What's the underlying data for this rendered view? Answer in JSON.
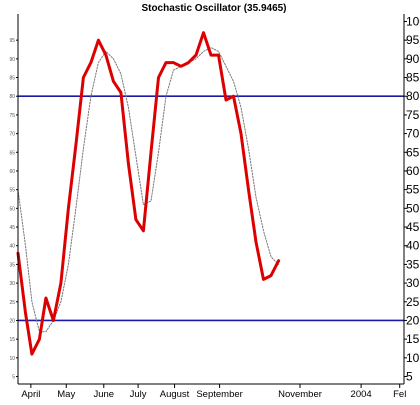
{
  "colors": {
    "main_line": "#dd0000",
    "signal_line": "#777777",
    "reference_lines": "#1a1aa8",
    "axes": "#000000"
  },
  "chart_data": {
    "type": "line",
    "title": "Stochastic Oscillator (35.9465)",
    "xlabel": "",
    "ylabel": "",
    "ylim": [
      3,
      102
    ],
    "grid": false,
    "y_ticks_right": [
      5,
      10,
      15,
      20,
      25,
      30,
      35,
      40,
      45,
      50,
      55,
      60,
      65,
      70,
      75,
      80,
      85,
      90,
      95,
      100
    ],
    "y_ticks_left": [
      5,
      10,
      15,
      20,
      25,
      30,
      35,
      40,
      45,
      50,
      55,
      60,
      65,
      70,
      75,
      80,
      85,
      90,
      95
    ],
    "x_tick_labels": [
      "April",
      "May",
      "June",
      "July",
      "August",
      "September",
      "November",
      "2004",
      "Fel"
    ],
    "x_tick_positions": [
      1.2,
      4.5,
      8.0,
      11.2,
      14.6,
      18.8,
      26.3,
      32.0,
      35.6
    ],
    "x_range": [
      0,
      36
    ],
    "reference_lines": [
      80,
      20
    ],
    "series": [
      {
        "style": "main",
        "points": [
          [
            0.0,
            38
          ],
          [
            0.7,
            22
          ],
          [
            1.3,
            11
          ],
          [
            2.0,
            15
          ],
          [
            2.6,
            26
          ],
          [
            3.3,
            20
          ],
          [
            4.0,
            30
          ],
          [
            4.7,
            50
          ],
          [
            5.4,
            67
          ],
          [
            6.1,
            85
          ],
          [
            6.8,
            89
          ],
          [
            7.5,
            95
          ],
          [
            8.2,
            91
          ],
          [
            8.9,
            84
          ],
          [
            9.6,
            81
          ],
          [
            10.3,
            62
          ],
          [
            11.0,
            47
          ],
          [
            11.7,
            44
          ],
          [
            12.4,
            65
          ],
          [
            13.1,
            85
          ],
          [
            13.8,
            89
          ],
          [
            14.5,
            89
          ],
          [
            15.2,
            88
          ],
          [
            15.9,
            89
          ],
          [
            16.6,
            91
          ],
          [
            17.3,
            97
          ],
          [
            18.0,
            91
          ],
          [
            18.7,
            91
          ],
          [
            19.4,
            79
          ],
          [
            20.1,
            80
          ],
          [
            20.8,
            70
          ],
          [
            21.5,
            55
          ],
          [
            22.2,
            41
          ],
          [
            22.9,
            31
          ],
          [
            23.6,
            32
          ],
          [
            24.3,
            36
          ]
        ]
      },
      {
        "style": "signal",
        "points": [
          [
            0.0,
            55
          ],
          [
            0.7,
            40
          ],
          [
            1.3,
            25
          ],
          [
            2.0,
            17
          ],
          [
            2.6,
            17
          ],
          [
            3.3,
            20
          ],
          [
            4.0,
            25
          ],
          [
            4.7,
            35
          ],
          [
            5.4,
            50
          ],
          [
            6.1,
            66
          ],
          [
            6.8,
            80
          ],
          [
            7.5,
            89
          ],
          [
            8.2,
            92
          ],
          [
            8.9,
            90
          ],
          [
            9.6,
            86
          ],
          [
            10.3,
            77
          ],
          [
            11.0,
            64
          ],
          [
            11.7,
            51
          ],
          [
            12.4,
            52
          ],
          [
            13.1,
            65
          ],
          [
            13.8,
            80
          ],
          [
            14.5,
            87
          ],
          [
            15.2,
            88
          ],
          [
            15.9,
            89
          ],
          [
            16.6,
            90
          ],
          [
            17.3,
            92
          ],
          [
            18.0,
            93
          ],
          [
            18.7,
            92
          ],
          [
            19.4,
            88
          ],
          [
            20.1,
            84
          ],
          [
            20.8,
            77
          ],
          [
            21.5,
            66
          ],
          [
            22.2,
            53
          ],
          [
            22.9,
            44
          ],
          [
            23.6,
            37
          ],
          [
            24.3,
            35
          ]
        ]
      }
    ]
  }
}
